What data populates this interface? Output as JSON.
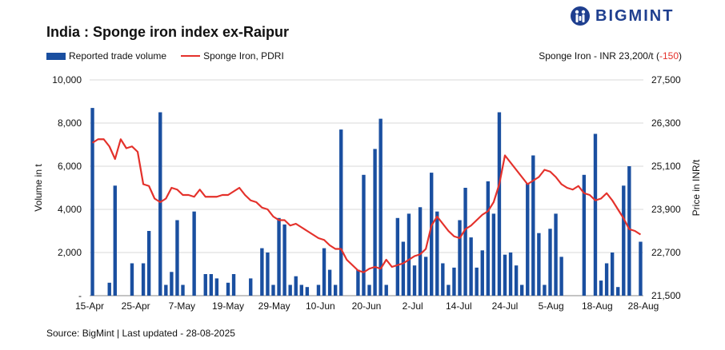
{
  "chart_data": {
    "type": "bar",
    "title": "India : Sponge iron index ex-Raipur",
    "source": "Source: BigMint | Last updated - 28-08-2025",
    "brand": "BIGMINT",
    "price_note_prefix": "Sponge Iron - INR 23,200/t (",
    "price_change": "-150",
    "price_note_suffix": ")",
    "legend_position": "top-left",
    "grid": true,
    "x_tick_labels": [
      "15-Apr",
      "25-Apr",
      "7-May",
      "19-May",
      "29-May",
      "10-Jun",
      "20-Jun",
      "2-Jul",
      "14-Jul",
      "24-Jul",
      "5-Aug",
      "18-Aug",
      "28-Aug"
    ],
    "y_left": {
      "label": "Volume in t",
      "range": [
        0,
        10000
      ],
      "tick_labels": [
        "-",
        "2,000",
        "4,000",
        "6,000",
        "8,000",
        "10,000"
      ]
    },
    "y_right": {
      "label": "Price in INR/t",
      "range": [
        21500,
        27500
      ],
      "tick_labels": [
        "21,500",
        "22,700",
        "23,900",
        "25,100",
        "26,300",
        "27,500"
      ]
    },
    "series": [
      {
        "name": "Reported trade volume",
        "type": "bar",
        "axis": "left",
        "color": "#1a4fa0",
        "values": [
          8700,
          0,
          0,
          600,
          5100,
          0,
          0,
          1500,
          0,
          1500,
          3000,
          0,
          8500,
          500,
          1100,
          3500,
          500,
          0,
          3900,
          0,
          1000,
          1000,
          800,
          0,
          600,
          1000,
          0,
          0,
          800,
          0,
          2200,
          2000,
          500,
          3600,
          3300,
          500,
          900,
          500,
          400,
          0,
          500,
          2200,
          1200,
          500,
          7700,
          0,
          0,
          1200,
          5600,
          500,
          6800,
          8200,
          500,
          0,
          3600,
          2500,
          3800,
          1400,
          4100,
          1800,
          5700,
          3900,
          1500,
          500,
          1300,
          3500,
          5000,
          2700,
          1300,
          2100,
          5300,
          3800,
          8500,
          1900,
          2000,
          1400,
          500,
          5200,
          6500,
          2900,
          500,
          3100,
          3800,
          1800,
          0,
          0,
          0,
          5600,
          0,
          7500,
          700,
          1500,
          2000,
          400,
          5100,
          6000,
          0,
          2500
        ]
      },
      {
        "name": "Sponge Iron, PDRI",
        "type": "line",
        "axis": "right",
        "color": "#e4312b",
        "values": [
          25750,
          25850,
          25850,
          25650,
          25300,
          25850,
          25600,
          25650,
          25500,
          24600,
          24550,
          24200,
          24100,
          24200,
          24500,
          24450,
          24300,
          24300,
          24250,
          24450,
          24250,
          24250,
          24250,
          24300,
          24300,
          24400,
          24500,
          24300,
          24150,
          24100,
          23950,
          23900,
          23700,
          23600,
          23600,
          23450,
          23500,
          23400,
          23300,
          23200,
          23100,
          23050,
          22900,
          22800,
          22800,
          22500,
          22350,
          22200,
          22150,
          22250,
          22300,
          22250,
          22500,
          22300,
          22350,
          22400,
          22500,
          22600,
          22650,
          22800,
          23450,
          23700,
          23500,
          23300,
          23150,
          23100,
          23350,
          23450,
          23600,
          23750,
          23850,
          24100,
          24600,
          25400,
          25200,
          25000,
          24800,
          24600,
          24700,
          24800,
          25000,
          24950,
          24800,
          24600,
          24500,
          24450,
          24550,
          24350,
          24300,
          24150,
          24200,
          24350,
          24150,
          23900,
          23650,
          23350,
          23300,
          23200
        ]
      }
    ]
  }
}
